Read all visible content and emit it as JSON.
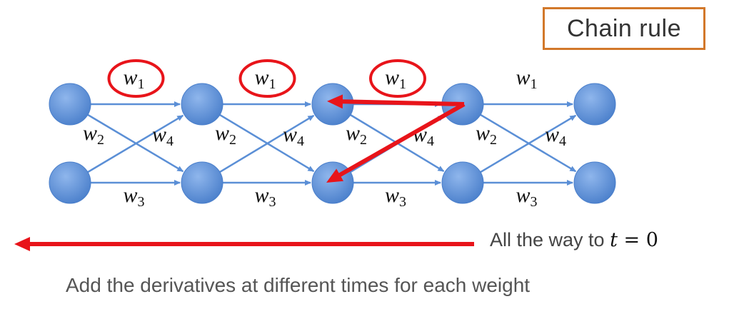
{
  "title_box": {
    "label": "Chain rule",
    "border_color": "#d2782a"
  },
  "diagram": {
    "node_color": "#5b8fd6",
    "edge_color": "#5b8fd6",
    "highlight_color": "#e8141a",
    "weights": {
      "w1": {
        "base": "w",
        "sub": "1"
      },
      "w2": {
        "base": "w",
        "sub": "2"
      },
      "w3": {
        "base": "w",
        "sub": "3"
      },
      "w4": {
        "base": "w",
        "sub": "4"
      }
    },
    "circled_steps": 3
  },
  "timeline_arrow": {
    "text": "All the way to ",
    "math_var": "t",
    "math_rest": " = 0"
  },
  "caption": "Add the derivatives at different times for each weight"
}
